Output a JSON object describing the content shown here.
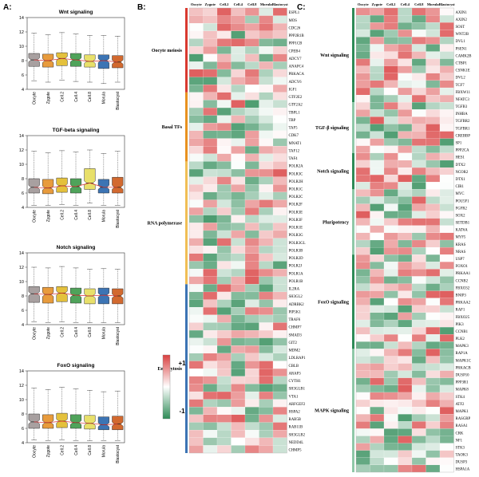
{
  "panels": {
    "A": "A:",
    "B": "B:",
    "C": "C:"
  },
  "stages": [
    "Oocyte",
    "Zygote",
    "Cell.2",
    "Cell.4",
    "Cell.8",
    "Morula",
    "Blastocyst"
  ],
  "legend": {
    "max_label": "+1",
    "min_label": "-1"
  },
  "colors": {
    "positive": "#d94040",
    "negative": "#2e8b57",
    "neutral": "#ffffff"
  },
  "chart_data": [
    {
      "type": "box",
      "title": "Wnt signaling",
      "ylim": [
        4,
        14
      ],
      "yticks": [
        4,
        6,
        8,
        10,
        12,
        14
      ],
      "categories": [
        "Oocyte",
        "Zygote",
        "Cell.2",
        "Cell.4",
        "Cell.8",
        "Morula",
        "Blastocyst"
      ],
      "medians": [
        8.1,
        8.0,
        8.3,
        8.1,
        7.9,
        8.0,
        7.8
      ],
      "q1": [
        7.2,
        7.1,
        7.3,
        7.2,
        7.1,
        6.9,
        7.0
      ],
      "q3": [
        9.0,
        8.9,
        9.1,
        9.0,
        8.8,
        8.8,
        8.7
      ],
      "whisker_low": [
        5.2,
        5.0,
        5.3,
        5.1,
        5.0,
        4.8,
        5.0
      ],
      "whisker_high": [
        11.8,
        11.6,
        11.9,
        11.7,
        11.5,
        11.5,
        11.4
      ],
      "colors": [
        "#a8a0a0",
        "#e89b3c",
        "#e4c13c",
        "#4fa35a",
        "#e8e06a",
        "#3c74b4",
        "#d2692f"
      ]
    },
    {
      "type": "box",
      "title": "TGF-beta signaling",
      "ylim": [
        4,
        14
      ],
      "yticks": [
        4,
        6,
        8,
        10,
        12,
        14
      ],
      "categories": [
        "Oocyte",
        "Zygote",
        "Cell.2",
        "Cell.4",
        "Cell.8",
        "Morula",
        "Blastocyst"
      ],
      "medians": [
        6.8,
        6.7,
        7.0,
        6.9,
        7.4,
        6.8,
        6.8
      ],
      "q1": [
        6.0,
        5.9,
        6.1,
        6.0,
        6.5,
        6.0,
        6.0
      ],
      "q3": [
        8.0,
        7.9,
        8.1,
        8.0,
        9.4,
        7.9,
        8.2
      ],
      "whisker_low": [
        4.3,
        4.3,
        4.4,
        4.3,
        4.6,
        4.3,
        4.3
      ],
      "whisker_high": [
        11.8,
        11.6,
        11.9,
        11.7,
        12.0,
        11.5,
        11.8
      ],
      "colors": [
        "#a8a0a0",
        "#e89b3c",
        "#e4c13c",
        "#4fa35a",
        "#e8e06a",
        "#3c74b4",
        "#d2692f"
      ]
    },
    {
      "type": "box",
      "title": "Notch signaling",
      "ylim": [
        4,
        14
      ],
      "yticks": [
        4,
        6,
        8,
        10,
        12,
        14
      ],
      "categories": [
        "Oocyte",
        "Zygote",
        "Cell.2",
        "Cell.4",
        "Cell.8",
        "Morula",
        "Blastocyst"
      ],
      "medians": [
        8.3,
        8.2,
        8.4,
        8.1,
        8.0,
        8.1,
        8.0
      ],
      "q1": [
        7.1,
        7.0,
        7.2,
        7.0,
        6.9,
        6.9,
        6.9
      ],
      "q3": [
        9.3,
        9.2,
        9.3,
        9.1,
        9.0,
        9.1,
        9.0
      ],
      "whisker_low": [
        4.4,
        4.3,
        4.4,
        4.3,
        4.3,
        4.3,
        4.3
      ],
      "whisker_high": [
        12.0,
        11.9,
        12.1,
        11.9,
        11.7,
        11.8,
        11.7
      ],
      "colors": [
        "#a8a0a0",
        "#e89b3c",
        "#e4c13c",
        "#4fa35a",
        "#e8e06a",
        "#3c74b4",
        "#d2692f"
      ]
    },
    {
      "type": "box",
      "title": "FoxO signaling",
      "ylim": [
        4,
        14
      ],
      "yticks": [
        4,
        6,
        8,
        10,
        12,
        14
      ],
      "categories": [
        "Oocyte",
        "Zygote",
        "Cell.2",
        "Cell.4",
        "Cell.8",
        "Morula",
        "Blastocyst"
      ],
      "medians": [
        6.9,
        6.8,
        7.0,
        6.8,
        6.7,
        6.5,
        6.6
      ],
      "q1": [
        6.0,
        6.0,
        6.1,
        6.0,
        5.9,
        5.8,
        5.8
      ],
      "q3": [
        8.0,
        7.9,
        8.1,
        7.9,
        7.8,
        7.6,
        7.7
      ],
      "whisker_low": [
        4.4,
        4.3,
        4.4,
        4.3,
        4.3,
        4.3,
        4.3
      ],
      "whisker_high": [
        11.6,
        11.4,
        11.7,
        11.5,
        11.3,
        11.1,
        11.2
      ],
      "colors": [
        "#a8a0a0",
        "#e89b3c",
        "#e4c13c",
        "#4fa35a",
        "#e8e06a",
        "#3c74b4",
        "#d2692f"
      ]
    },
    {
      "type": "heatmap",
      "panel": "B",
      "columns": [
        "Oocyte",
        "Zygote",
        "Cell.2",
        "Cell.4",
        "Cell.8",
        "Morula",
        "Blastocyst"
      ],
      "groups": [
        {
          "label": "Oocyte meiosis",
          "color": "#d9392f",
          "genes": [
            "ESPL1",
            "MOS",
            "CDC26",
            "PPP2R1B",
            "PPP1CB",
            "CPEB4",
            "ADCY7",
            "ANAPC4",
            "PRKACA",
            "ADCY6",
            "IGF1"
          ]
        },
        {
          "label": "Basal TFs",
          "color": "#e8911f",
          "genes": [
            "GTF2E2",
            "GTF2A2",
            "TBPL1",
            "TBP",
            "TAF5",
            "CDK7",
            "MNAT1",
            "TAF12",
            "TAF4"
          ]
        },
        {
          "label": "RNA polymerase",
          "color": "#f0be55",
          "genes": [
            "POLR2A",
            "POLR3C",
            "POLR2H",
            "POLR1C",
            "POLR2C",
            "POLR2F",
            "POLR3E",
            "POLR3F",
            "POLR1E",
            "POLR3G",
            "POLR3GL",
            "POLR3B",
            "POLR2D",
            "POLR2J",
            "POLR1A",
            "POLR1B"
          ]
        },
        {
          "label": "Endocytosis",
          "color": "#3c74b4",
          "genes": [
            "IL2RA",
            "SH3GL2",
            "ADRBK2",
            "PIP5K1",
            "TRAF6",
            "CHMP7",
            "SMAD3",
            "GIT2",
            "MDM2",
            "LDLRAP1",
            "CBLB",
            "ARAP3",
            "CYTH1",
            "SH3GLB1",
            "VTA1",
            "ARFGEF2",
            "HSPA2",
            "RAB5B",
            "RAB11B",
            "SH3GLB2",
            "NEDD4L",
            "CHMP5"
          ]
        }
      ]
    },
    {
      "type": "heatmap",
      "panel": "C",
      "columns": [
        "Oocyte",
        "Zygote",
        "Cell.2",
        "Cell.4",
        "Cell.8",
        "Morula",
        "Blastocyst"
      ],
      "groups": [
        {
          "label": "Wnt signaling",
          "color": "#2e8b57",
          "genes": [
            "AXIN1",
            "AXIN2",
            "SOST",
            "WNT2B",
            "DVL1",
            "PSEN1",
            "CAMK2B",
            "CTBP1",
            "CSNK1E",
            "DVL2",
            "TCF7",
            "FBXW11",
            "NFATC3"
          ]
        },
        {
          "label": "TGF-β signaling",
          "color": "#8fc8a8",
          "genes": [
            "TGFB3",
            "INHBA",
            "TGFBR2",
            "TGFBR1",
            "CREBBP",
            "SP1",
            "PPP2CA"
          ]
        },
        {
          "label": "Notch signaling",
          "color": "#2e8b57",
          "genes": [
            "HES1",
            "DTX2",
            "NCOR2",
            "DTX1",
            "CIR1"
          ]
        },
        {
          "label": "Pluripotency",
          "color": "#8fc8a8",
          "genes": [
            "MYC",
            "POU5F1",
            "FGFR2",
            "SOX2",
            "SETDB1",
            "KAT6A",
            "MYF5",
            "KRAS",
            "NRAS"
          ]
        },
        {
          "label": "FoxO signaling",
          "color": "#2e8b57",
          "genes": [
            "USP7",
            "FOXO1",
            "PRKAA1",
            "CCNB2",
            "FBXO32",
            "BNIP3",
            "PRKAA2",
            "RAF1",
            "FBXO25",
            "PIK3",
            "CCNB1",
            "PLK2",
            "MAPK3"
          ]
        },
        {
          "label": "MAPK signaling",
          "color": "#8fc8a8",
          "genes": [
            "RAP1A",
            "MAPK1C",
            "PRKACB",
            "DUSP10",
            "PPP3R1",
            "MAPK8",
            "STK4",
            "ATF2",
            "MAPK1",
            "RASGRP",
            "RASA1",
            "CRK",
            "NF1",
            "STK3",
            "TAOK3",
            "DUSP3",
            "HSPA1A"
          ]
        }
      ]
    }
  ]
}
